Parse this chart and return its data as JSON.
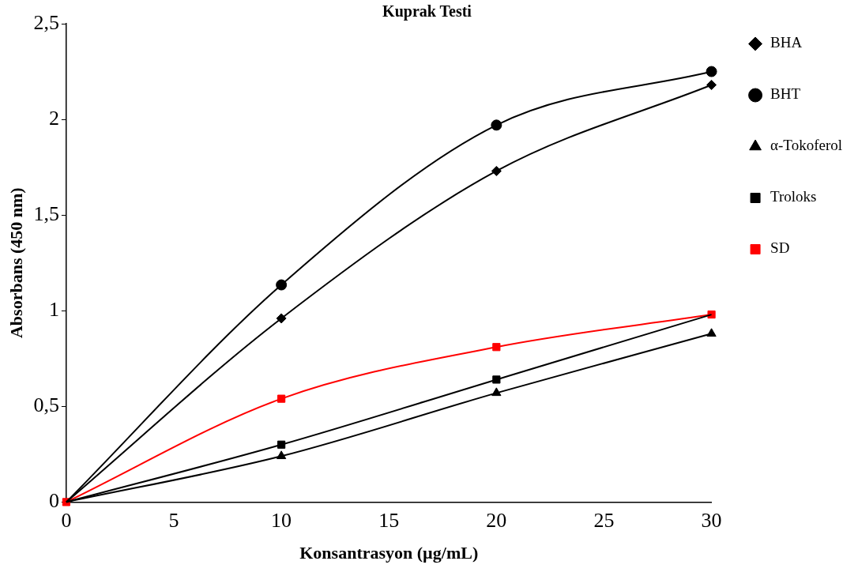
{
  "chart_data": {
    "type": "line",
    "title": "Kuprak Testi",
    "xlabel": "Konsantrasyon (µg/mL)",
    "ylabel": "Absorbans (450 nm)",
    "x": [
      0,
      10,
      20,
      30
    ],
    "series": [
      {
        "name": "BHA",
        "color": "#000000",
        "marker": "diamond",
        "values": [
          0,
          0.96,
          1.73,
          2.18
        ]
      },
      {
        "name": "BHT",
        "color": "#000000",
        "marker": "circle",
        "values": [
          0,
          1.135,
          1.97,
          2.25
        ]
      },
      {
        "name": "α-Tokoferol",
        "color": "#000000",
        "marker": "triangle",
        "values": [
          0,
          0.24,
          0.57,
          0.88
        ]
      },
      {
        "name": "Troloks",
        "color": "#000000",
        "marker": "square",
        "values": [
          0,
          0.3,
          0.64,
          0.98
        ]
      },
      {
        "name": "SD",
        "color": "#ff0000",
        "marker": "square",
        "values": [
          0,
          0.54,
          0.81,
          0.98
        ]
      }
    ],
    "xlim": [
      0,
      30
    ],
    "xticks": [
      0,
      5,
      10,
      15,
      20,
      25,
      30
    ],
    "ylim": [
      0,
      2.5
    ],
    "yticks": [
      0,
      {
        "value": 0.5,
        "label": "0,5"
      },
      1,
      {
        "value": 1.5,
        "label": "1,5"
      },
      2,
      {
        "value": 2.5,
        "label": "2,5"
      }
    ],
    "grid": false,
    "legend": "right",
    "line_style": "solid"
  }
}
